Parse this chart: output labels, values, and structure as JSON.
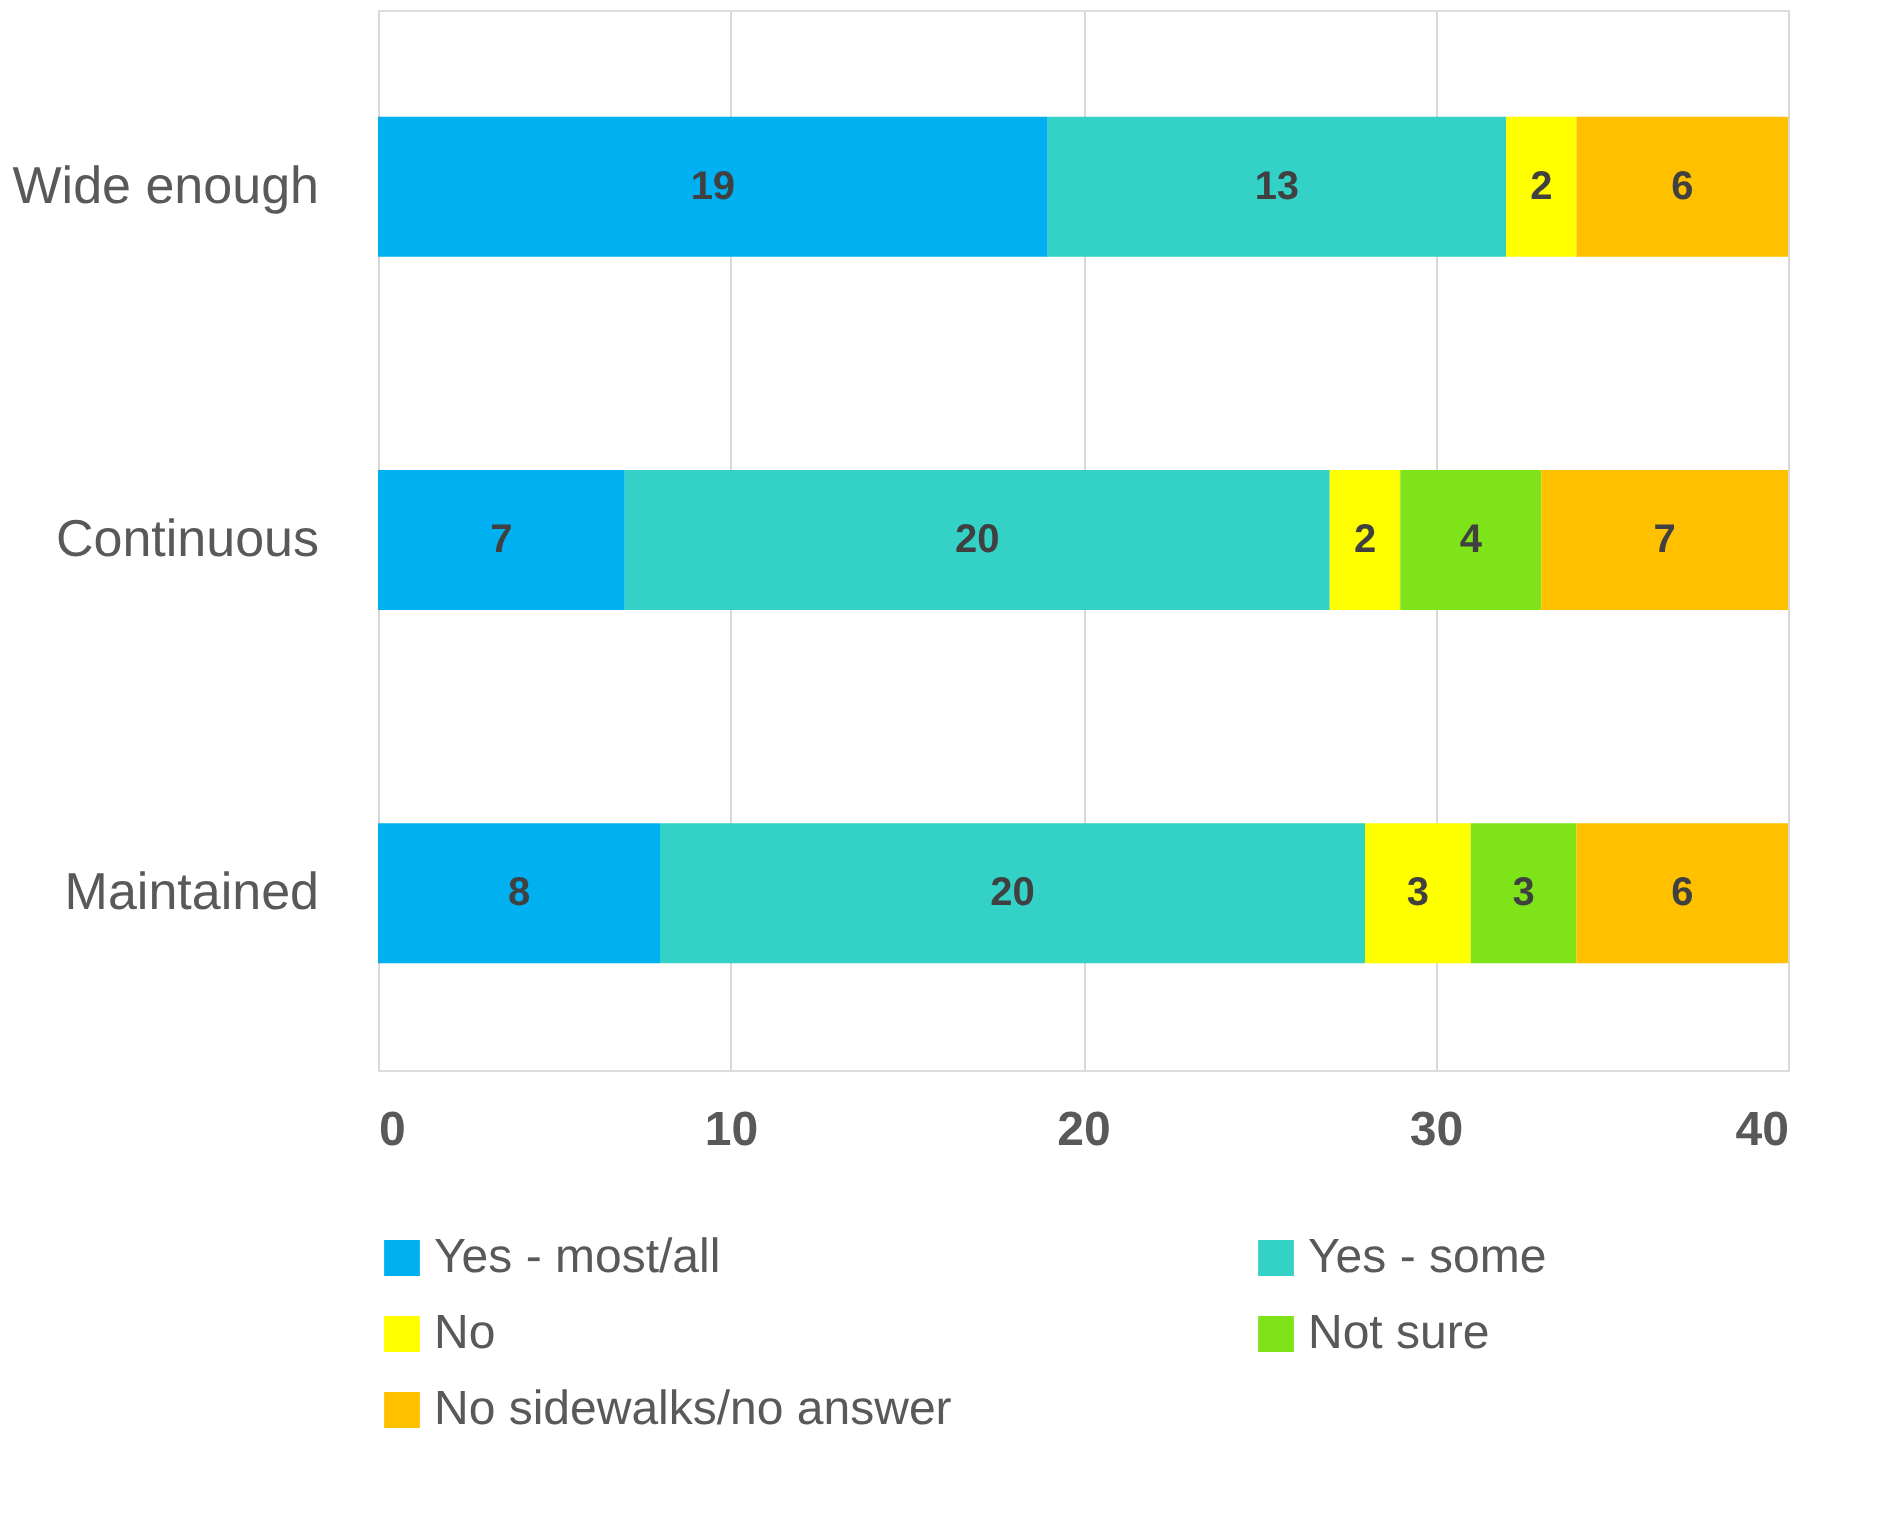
{
  "chart_data": {
    "type": "bar",
    "orientation": "horizontal",
    "stacked": true,
    "categories": [
      "Wide enough",
      "Continuous",
      "Maintained"
    ],
    "series": [
      {
        "name": "Yes - most/all",
        "color": "#00b0f0",
        "values": [
          19,
          7,
          8
        ]
      },
      {
        "name": "Yes - some",
        "color": "#33d1c6",
        "values": [
          13,
          20,
          20
        ]
      },
      {
        "name": "No",
        "color": "#ffff00",
        "values": [
          2,
          2,
          3
        ]
      },
      {
        "name": "Not sure",
        "color": "#7fe31a",
        "values": [
          null,
          4,
          3
        ]
      },
      {
        "name": "No sidewalks/no answer",
        "color": "#ffc000",
        "values": [
          6,
          7,
          6
        ]
      }
    ],
    "xlim": [
      0,
      40
    ],
    "xticks": [
      0,
      10,
      20,
      30,
      40
    ],
    "grid": "x",
    "legend": "bottom",
    "data_labels": true
  }
}
